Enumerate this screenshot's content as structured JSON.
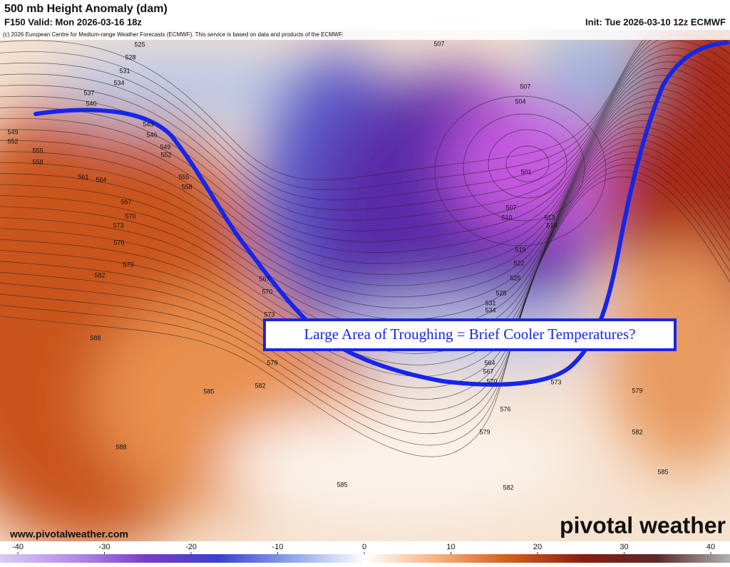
{
  "header": {
    "title": "500 mb Height Anomaly (dam)",
    "valid": "F150 Valid: Mon 2026-03-16 18z",
    "init": "Init: Tue 2026-03-10 12z ECMWF",
    "credit": "(c) 2026 European Centre for Medium-range Weather Forecasts (ECMWF). This service is based on data and products of the ECMWF."
  },
  "annotation": "Large Area of Troughing = Brief Cooler Temperatures?",
  "contour_labels": [
    525,
    528,
    531,
    534,
    537,
    540,
    543,
    546,
    549,
    552,
    555,
    558,
    561,
    564,
    567,
    570,
    573,
    576,
    579,
    582,
    588,
    585,
    582,
    579,
    573,
    570,
    567,
    549,
    552,
    555,
    558,
    507,
    507,
    504,
    501,
    507,
    510,
    513,
    516,
    519,
    522,
    525,
    528,
    531,
    534,
    564,
    567,
    570,
    573,
    576,
    579,
    579,
    582,
    585,
    582,
    585,
    588
  ],
  "footer": {
    "url": "www.pivotalweather.com",
    "brand": "pivotal weather"
  },
  "colorbar": {
    "range": [
      -40,
      40
    ],
    "ticks": [
      -40,
      -30,
      -20,
      -10,
      0,
      10,
      20,
      30,
      40
    ]
  }
}
